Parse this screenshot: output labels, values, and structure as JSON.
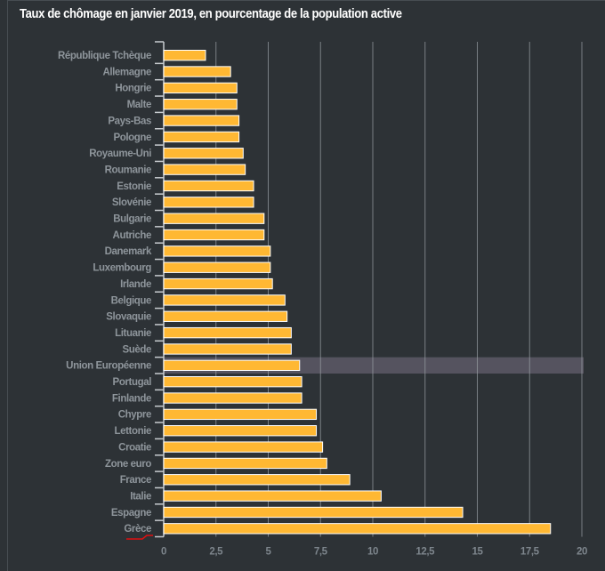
{
  "chart_data": {
    "type": "bar",
    "orientation": "horizontal",
    "title": "Taux de chômage en janvier 2019, en pourcentage de la population active",
    "categories": [
      "République Tchèque",
      "Allemagne",
      "Hongrie",
      "Malte",
      "Pays-Bas",
      "Pologne",
      "Royaume-Uni",
      "Roumanie",
      "Estonie",
      "Slovénie",
      "Bulgarie",
      "Autriche",
      "Danemark",
      "Luxembourg",
      "Irlande",
      "Belgique",
      "Slovaquie",
      "Lituanie",
      "Suède",
      "Union Européenne",
      "Portugal",
      "Finlande",
      "Chypre",
      "Lettonie",
      "Croatie",
      "Zone euro",
      "France",
      "Italie",
      "Espagne",
      "Grèce"
    ],
    "values": [
      2.0,
      3.2,
      3.5,
      3.5,
      3.6,
      3.6,
      3.8,
      3.9,
      4.3,
      4.3,
      4.8,
      4.8,
      5.1,
      5.1,
      5.2,
      5.8,
      5.9,
      6.1,
      6.1,
      6.5,
      6.6,
      6.6,
      7.3,
      7.3,
      7.6,
      7.8,
      8.9,
      10.4,
      14.3,
      18.5
    ],
    "highlighted": "Union Européenne",
    "xlim": [
      0,
      20
    ],
    "xticks": [
      "0",
      "2,5",
      "5",
      "7,5",
      "10",
      "12,5",
      "15",
      "17,5",
      "20"
    ],
    "xtick_values": [
      0,
      2.5,
      5,
      7.5,
      10,
      12.5,
      15,
      17.5,
      20
    ],
    "grid": true,
    "colors": {
      "bar": "#ffb833",
      "bar_border": "#ffffff",
      "highlight": "#55535f",
      "background": "#2d3236",
      "grid": "#9aa0a6"
    }
  }
}
